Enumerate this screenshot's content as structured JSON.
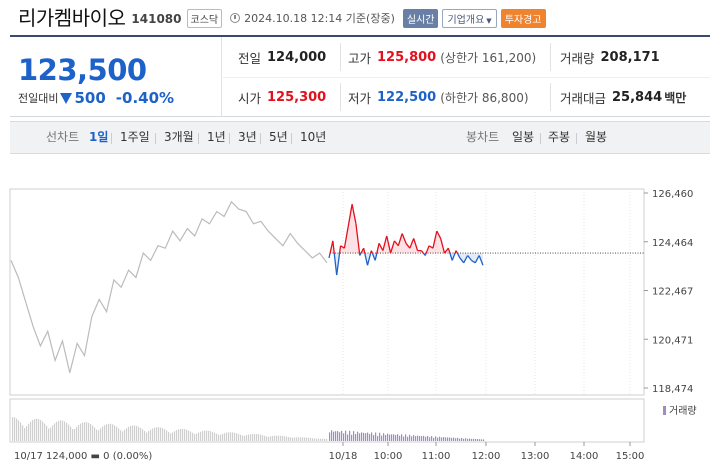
{
  "header": {
    "stock_name": "리가켐바이오",
    "stock_code": "141080",
    "market": "코스닥",
    "as_of": "2024.10.18 12:14 기준(장중)",
    "realtime_label": "실시간",
    "company_label": "기업개요",
    "warning_label": "투자경고"
  },
  "quote": {
    "price": "123,500",
    "change_label": "전일대비",
    "change_amount": "500",
    "change_pct": "-0.40%",
    "prev_close_label": "전일",
    "prev_close": "124,000",
    "high_label": "고가",
    "high": "125,800",
    "upper_limit": "(상한가 161,200)",
    "volume_label": "거래량",
    "volume": "208,171",
    "open_label": "시가",
    "open": "125,300",
    "low_label": "저가",
    "low": "122,500",
    "lower_limit": "(하한가 86,800)",
    "amount_label": "거래대금",
    "amount": "25,844",
    "amount_unit": "백만"
  },
  "toolbar": {
    "line_label": "선차트",
    "line_periods": [
      "1일",
      "1주일",
      "3개월",
      "1년",
      "3년",
      "5년",
      "10년"
    ],
    "candle_label": "봉차트",
    "candle_periods": [
      "일봉",
      "주봉",
      "월봉"
    ]
  },
  "colors": {
    "up": "#e3101e",
    "down": "#1d62c9",
    "prev": "#bbbbbb",
    "volume": "#9e8cc2"
  },
  "chart_data": {
    "type": "line",
    "y_ticks": [
      "126,460",
      "124,464",
      "122,467",
      "120,471",
      "118,474"
    ],
    "ylim": [
      118474,
      126460
    ],
    "reference_line": 124000,
    "x_ticks": [
      "10/18",
      "10:00",
      "11:00",
      "12:00",
      "13:00",
      "14:00",
      "15:00"
    ],
    "prev_day_footer": "10/17 124,000 ▬ 0 (0.00%)",
    "volume_legend": "거래량",
    "series": [
      {
        "values": [
          123700,
          123000,
          122000,
          121000,
          120200,
          120800,
          119600,
          120400,
          119100,
          120300,
          119800,
          121400,
          122100,
          121600,
          122900,
          122600,
          123300,
          123000,
          124000,
          123700,
          124300,
          124200,
          124900,
          124500,
          125000,
          124700,
          125400,
          125200,
          125700,
          125500,
          126100,
          125800,
          125700,
          125200,
          125300,
          124900,
          124600,
          124300,
          124800,
          124400,
          124100,
          123800,
          124000,
          123600
        ]
      },
      {
        "values": [
          123800,
          124500,
          123100,
          124300,
          124200,
          125100,
          126000,
          125200,
          123900,
          124200,
          123500,
          124100,
          123700,
          124400,
          124100,
          124700,
          124000,
          124500,
          124300,
          124800,
          124400,
          124200,
          124600,
          124100,
          124100,
          123900,
          124300,
          124200,
          124900,
          124600,
          124000,
          124200,
          123700,
          124100,
          123800,
          123600,
          123900,
          123700,
          123600,
          123900,
          123500
        ]
      }
    ]
  }
}
